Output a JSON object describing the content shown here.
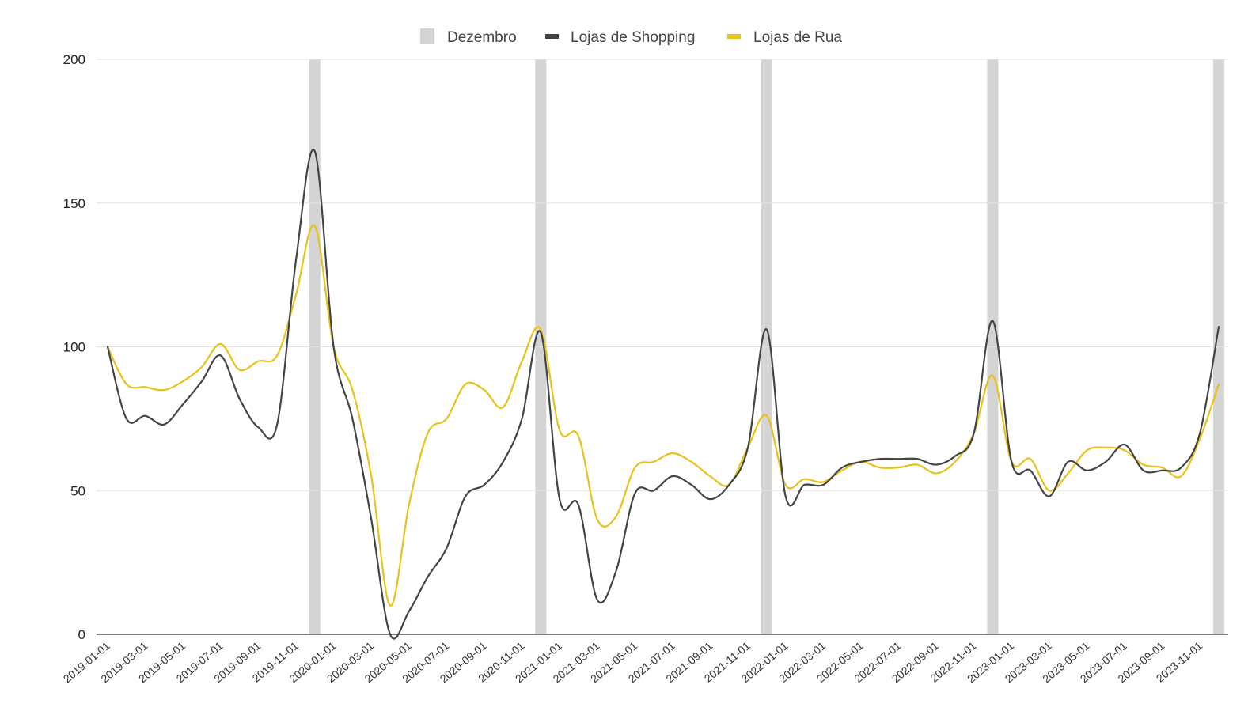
{
  "chart_data": {
    "type": "line",
    "title": "",
    "xlabel": "",
    "ylabel": "",
    "ylim": [
      0,
      200
    ],
    "y_ticks": [
      "0",
      "50",
      "100",
      "150",
      "200"
    ],
    "grid": true,
    "legend_position": "top-center",
    "legend": {
      "band_label": "Dezembro",
      "series_labels": [
        "Lojas de Shopping",
        "Lojas de Rua"
      ]
    },
    "x_tick_labels": [
      "2019-01-01",
      "2019-03-01",
      "2019-05-01",
      "2019-07-01",
      "2019-09-01",
      "2019-11-01",
      "2020-01-01",
      "2020-03-01",
      "2020-05-01",
      "2020-07-01",
      "2020-09-01",
      "2020-11-01",
      "2021-01-01",
      "2021-03-01",
      "2021-05-01",
      "2021-07-01",
      "2021-09-01",
      "2021-11-01",
      "2022-01-01",
      "2022-03-01",
      "2022-05-01",
      "2022-07-01",
      "2022-09-01",
      "2022-11-01",
      "2023-01-01",
      "2023-03-01",
      "2023-05-01",
      "2023-07-01",
      "2023-09-01",
      "2023-11-01"
    ],
    "x": [
      "2019-01",
      "2019-02",
      "2019-03",
      "2019-04",
      "2019-05",
      "2019-06",
      "2019-07",
      "2019-08",
      "2019-09",
      "2019-10",
      "2019-11",
      "2019-12",
      "2020-01",
      "2020-02",
      "2020-03",
      "2020-04",
      "2020-05",
      "2020-06",
      "2020-07",
      "2020-08",
      "2020-09",
      "2020-10",
      "2020-11",
      "2020-12",
      "2021-01",
      "2021-02",
      "2021-03",
      "2021-04",
      "2021-05",
      "2021-06",
      "2021-07",
      "2021-08",
      "2021-09",
      "2021-10",
      "2021-11",
      "2021-12",
      "2022-01",
      "2022-02",
      "2022-03",
      "2022-04",
      "2022-05",
      "2022-06",
      "2022-07",
      "2022-08",
      "2022-09",
      "2022-10",
      "2022-11",
      "2022-12",
      "2023-01",
      "2023-02",
      "2023-03",
      "2023-04",
      "2023-05",
      "2023-06",
      "2023-07",
      "2023-08",
      "2023-09",
      "2023-10",
      "2023-11",
      "2023-12"
    ],
    "december_bands": [
      "2019-12",
      "2020-12",
      "2021-12",
      "2022-12",
      "2023-12"
    ],
    "series": [
      {
        "name": "Lojas de Shopping",
        "color": "#444444",
        "values": [
          100,
          75,
          76,
          73,
          80,
          88,
          97,
          82,
          72,
          73,
          130,
          168,
          100,
          75,
          40,
          0,
          8,
          20,
          30,
          48,
          52,
          60,
          75,
          105,
          47,
          45,
          12,
          22,
          49,
          50,
          55,
          52,
          47,
          52,
          65,
          106,
          48,
          52,
          52,
          58,
          60,
          61,
          61,
          61,
          59,
          62,
          70,
          109,
          60,
          57,
          48,
          60,
          57,
          60,
          66,
          57,
          57,
          58,
          70,
          107
        ]
      },
      {
        "name": "Lojas de Rua",
        "color": "#e8c21a",
        "values": [
          100,
          87,
          86,
          85,
          88,
          93,
          101,
          92,
          95,
          97,
          118,
          142,
          100,
          85,
          55,
          10,
          45,
          70,
          75,
          87,
          85,
          79,
          95,
          106,
          71,
          69,
          40,
          41,
          58,
          60,
          63,
          60,
          55,
          52,
          65,
          76,
          52,
          54,
          53,
          57,
          60,
          58,
          58,
          59,
          56,
          60,
          70,
          90,
          60,
          61,
          50,
          56,
          64,
          65,
          64,
          59,
          58,
          55,
          68,
          87
        ]
      }
    ]
  }
}
